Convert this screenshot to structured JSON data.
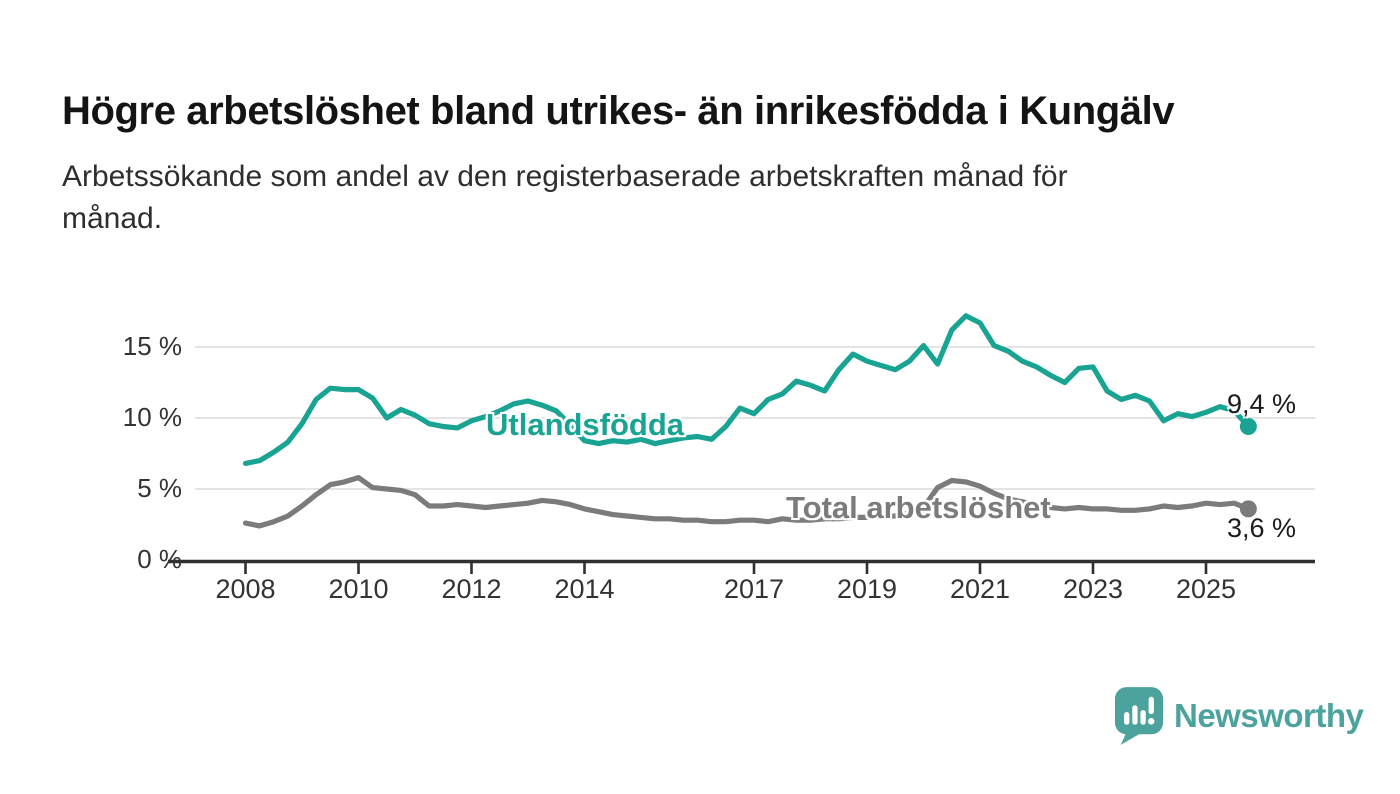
{
  "header": {
    "title": "Högre arbetslöshet bland utrikes- än inrikesfödda i Kungälv",
    "subtitle": "Arbetssökande som andel av den registerbaserade arbetskraften månad för månad.",
    "subtitle_lines": [
      "Arbetssökande som andel av den registerbaserade arbetskraften månad för",
      "månad."
    ]
  },
  "chart_data": {
    "type": "line",
    "title": "Högre arbetslöshet bland utrikes- än inrikesfödda i Kungälv",
    "subtitle": "Arbetssökande som andel av den registerbaserade arbetskraften månad för månad.",
    "x_unit": "year (quarterly estimates)",
    "x_start": 2008,
    "x_step": 0.25,
    "ylim": [
      0,
      17.5
    ],
    "grid": "horizontal",
    "grid_color": "#dcdcdc",
    "axis_color": "#2f2f2f",
    "legend": "inline-labels-on-lines",
    "yticks": [
      {
        "value": 0,
        "label": "0 %"
      },
      {
        "value": 5,
        "label": "5 %"
      },
      {
        "value": 10,
        "label": "10 %"
      },
      {
        "value": 15,
        "label": "15 %"
      }
    ],
    "xticks": [
      {
        "value": 2008,
        "label": "2008"
      },
      {
        "value": 2010,
        "label": "2010"
      },
      {
        "value": 2012,
        "label": "2012"
      },
      {
        "value": 2014,
        "label": "2014"
      },
      {
        "value": 2017,
        "label": "2017"
      },
      {
        "value": 2019,
        "label": "2019"
      },
      {
        "value": 2021,
        "label": "2021"
      },
      {
        "value": 2023,
        "label": "2023"
      },
      {
        "value": 2025,
        "label": "2025"
      }
    ],
    "series": [
      {
        "name": "Utlandsfödda",
        "color": "#18A392",
        "end_label": "9,4 %",
        "end_value": 9.4,
        "values": [
          6.8,
          7.0,
          7.6,
          8.3,
          9.6,
          11.3,
          12.1,
          12.0,
          12.0,
          11.4,
          10.0,
          10.6,
          10.2,
          9.6,
          9.4,
          9.3,
          9.8,
          10.1,
          10.5,
          11.0,
          11.2,
          10.9,
          10.5,
          9.5,
          8.4,
          8.2,
          8.4,
          8.3,
          8.5,
          8.2,
          8.4,
          8.6,
          8.7,
          8.5,
          9.4,
          10.7,
          10.3,
          11.3,
          11.7,
          12.6,
          12.3,
          11.9,
          13.4,
          14.5,
          14.0,
          13.7,
          13.4,
          14.0,
          15.1,
          13.8,
          16.2,
          17.2,
          16.7,
          15.1,
          14.7,
          14.0,
          13.6,
          13.0,
          12.5,
          13.5,
          13.6,
          11.9,
          11.3,
          11.6,
          11.2,
          9.8,
          10.3,
          10.1,
          10.4,
          10.8,
          10.5,
          9.4
        ]
      },
      {
        "name": "Total arbetslöshet",
        "color": "#7B7B7E",
        "end_label": "3,6 %",
        "end_value": 3.6,
        "values": [
          2.6,
          2.4,
          2.7,
          3.1,
          3.8,
          4.6,
          5.3,
          5.5,
          5.8,
          5.1,
          5.0,
          4.9,
          4.6,
          3.8,
          3.8,
          3.9,
          3.8,
          3.7,
          3.8,
          3.9,
          4.0,
          4.2,
          4.1,
          3.9,
          3.6,
          3.4,
          3.2,
          3.1,
          3.0,
          2.9,
          2.9,
          2.8,
          2.8,
          2.7,
          2.7,
          2.8,
          2.8,
          2.7,
          2.9,
          2.8,
          2.8,
          2.9,
          2.9,
          3.0,
          3.0,
          3.1,
          3.1,
          3.3,
          3.7,
          5.1,
          5.6,
          5.5,
          5.2,
          4.7,
          4.3,
          4.1,
          3.9,
          3.7,
          3.6,
          3.7,
          3.6,
          3.6,
          3.5,
          3.5,
          3.6,
          3.8,
          3.7,
          3.8,
          4.0,
          3.9,
          4.0,
          3.6
        ]
      }
    ]
  },
  "footer": {
    "brand": "Newsworthy",
    "brand_color": "#4CA29C"
  }
}
